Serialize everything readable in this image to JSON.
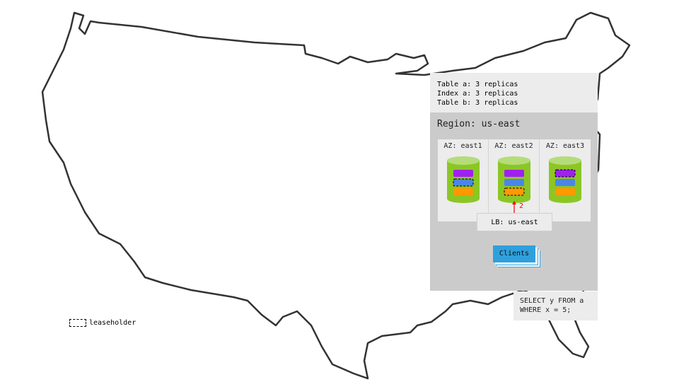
{
  "legend": [
    {
      "text": "Table a: 3 replicas",
      "color": "#a020f0"
    },
    {
      "text": "Index a: 3 replicas",
      "color": "#4a86e8"
    },
    {
      "text": "Table b: 3 replicas",
      "color": "#ff9900"
    }
  ],
  "region": {
    "title": "Region: us-east"
  },
  "azs": [
    {
      "label": "AZ: east1",
      "leaseholder": "index-a"
    },
    {
      "label": "AZ: east2",
      "leaseholder": "table-b"
    },
    {
      "label": "AZ: east3",
      "leaseholder": "table-a"
    }
  ],
  "arrow_label": "2",
  "load_balancer": "LB: us-east",
  "clients": "Clients",
  "query": [
    "SELECT y FROM a",
    "WHERE x = 5;"
  ],
  "leaseholder_legend": "leaseholder",
  "colors": {
    "cylinder": "#8cc625",
    "cylinder_top": "#b5dc7a",
    "arrow": "#ff0000",
    "clients": "#2fa0dc"
  }
}
